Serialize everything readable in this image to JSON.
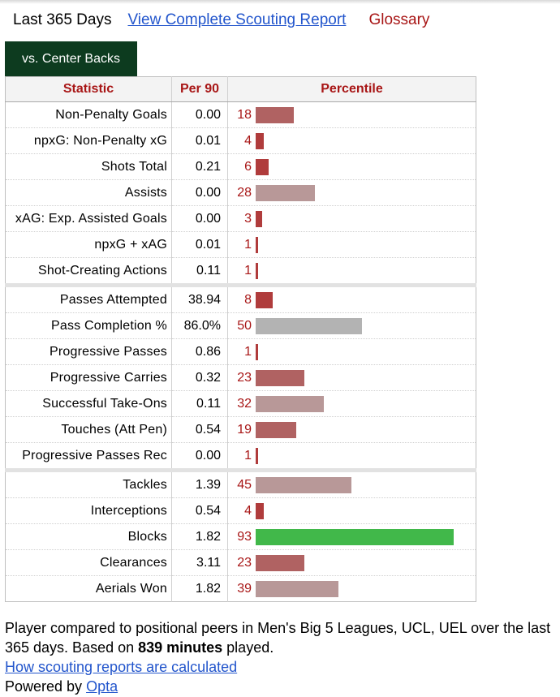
{
  "header": {
    "period": "Last 365 Days",
    "report_link": "View Complete Scouting Report",
    "glossary_link": "Glossary"
  },
  "tab": {
    "label": "vs. Center Backs"
  },
  "table": {
    "columns": [
      "Statistic",
      "Per 90",
      "Percentile"
    ],
    "bar_colors": {
      "low": "#b06262",
      "mid": "#b89898",
      "average": "#b3b3b3",
      "elite": "#41b84a"
    },
    "groups": [
      [
        {
          "stat": "Non-Penalty Goals",
          "per90": "0.00",
          "percentile": 18
        },
        {
          "stat": "npxG: Non-Penalty xG",
          "per90": "0.01",
          "percentile": 4
        },
        {
          "stat": "Shots Total",
          "per90": "0.21",
          "percentile": 6
        },
        {
          "stat": "Assists",
          "per90": "0.00",
          "percentile": 28
        },
        {
          "stat": "xAG: Exp. Assisted Goals",
          "per90": "0.00",
          "percentile": 3
        },
        {
          "stat": "npxG + xAG",
          "per90": "0.01",
          "percentile": 1
        },
        {
          "stat": "Shot-Creating Actions",
          "per90": "0.11",
          "percentile": 1
        }
      ],
      [
        {
          "stat": "Passes Attempted",
          "per90": "38.94",
          "percentile": 8
        },
        {
          "stat": "Pass Completion %",
          "per90": "86.0%",
          "percentile": 50
        },
        {
          "stat": "Progressive Passes",
          "per90": "0.86",
          "percentile": 1
        },
        {
          "stat": "Progressive Carries",
          "per90": "0.32",
          "percentile": 23
        },
        {
          "stat": "Successful Take-Ons",
          "per90": "0.11",
          "percentile": 32
        },
        {
          "stat": "Touches (Att Pen)",
          "per90": "0.54",
          "percentile": 19
        },
        {
          "stat": "Progressive Passes Rec",
          "per90": "0.00",
          "percentile": 1
        }
      ],
      [
        {
          "stat": "Tackles",
          "per90": "1.39",
          "percentile": 45
        },
        {
          "stat": "Interceptions",
          "per90": "0.54",
          "percentile": 4
        },
        {
          "stat": "Blocks",
          "per90": "1.82",
          "percentile": 93
        },
        {
          "stat": "Clearances",
          "per90": "3.11",
          "percentile": 23
        },
        {
          "stat": "Aerials Won",
          "per90": "1.82",
          "percentile": 39
        }
      ]
    ]
  },
  "footer": {
    "line1_prefix": "Player compared to positional peers in Men's Big 5 Leagues, UCL, UEL over the last 365 days. Based on ",
    "minutes": "839 minutes",
    "line1_suffix": " played.",
    "method_link": "How scouting reports are calculated",
    "powered_prefix": "Powered by ",
    "powered_link": "Opta"
  }
}
